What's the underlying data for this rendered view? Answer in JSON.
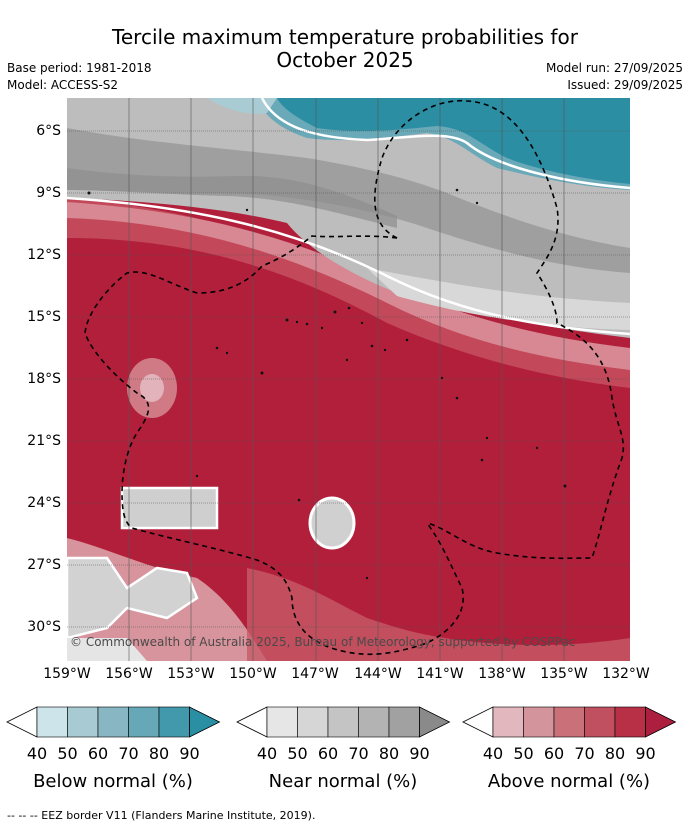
{
  "title_line1": "Tercile maximum temperature probabilities for",
  "title_line2": "October 2025",
  "base_period": "Base period: 1981-2018",
  "model": "Model: ACCESS-S2",
  "model_run": "Model run: 27/09/2025",
  "issued": "Issued: 29/09/2025",
  "copyright": "© Commonwealth of Australia 2025, Bureau of Meteorology, supported by COSPPac",
  "latitudes": [
    "6°S",
    "9°S",
    "12°S",
    "15°S",
    "18°S",
    "21°S",
    "24°S",
    "27°S",
    "30°S"
  ],
  "longitudes": [
    "159°W",
    "156°W",
    "153°W",
    "150°W",
    "147°W",
    "144°W",
    "141°W",
    "138°W",
    "135°W",
    "132°W"
  ],
  "colorbars": [
    {
      "title": "Below normal (%)",
      "ticks": [
        "40",
        "50",
        "60",
        "70",
        "80",
        "90"
      ],
      "colors": [
        "#ffffff",
        "#cce4ea",
        "#a7cad3",
        "#88b7c3",
        "#67a8b8",
        "#4199ab",
        "#2a8fa3"
      ]
    },
    {
      "title": "Near normal (%)",
      "ticks": [
        "40",
        "50",
        "60",
        "70",
        "80",
        "90"
      ],
      "colors": [
        "#ffffff",
        "#e6e6e6",
        "#d6d6d6",
        "#c4c4c4",
        "#b3b3b3",
        "#a1a1a1",
        "#8a8a8a"
      ]
    },
    {
      "title": "Above normal (%)",
      "ticks": [
        "40",
        "50",
        "60",
        "70",
        "80",
        "90"
      ],
      "colors": [
        "#ffffff",
        "#e2b7bd",
        "#d4949c",
        "#c97078",
        "#c0505f",
        "#b73046",
        "#ad1f3e"
      ]
    }
  ],
  "footer": "-- -- -- EEZ border V11 (Flanders Marine Institute, 2019)."
}
